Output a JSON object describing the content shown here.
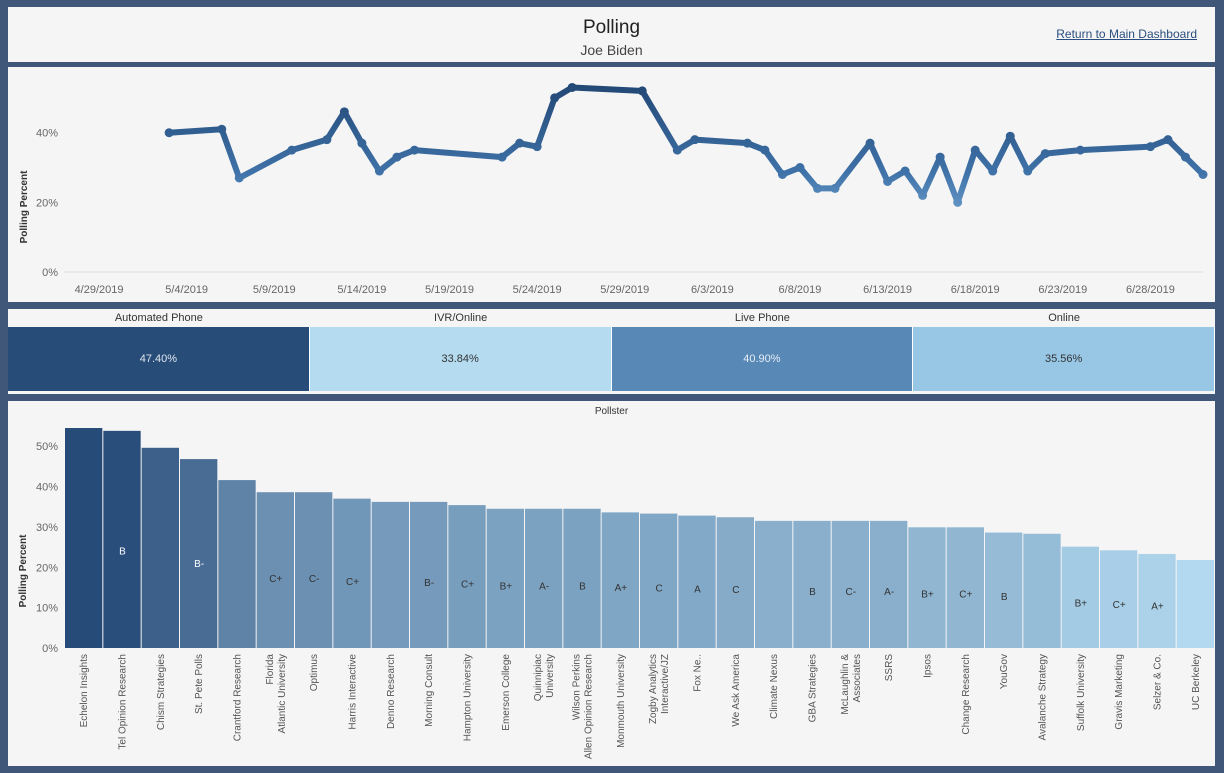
{
  "header": {
    "title": "Polling",
    "subtitle": "Joe Biden",
    "return_link": "Return to Main Dashboard"
  },
  "line_chart": {
    "ylabel": "Polling Percent",
    "y_ticks": [
      "0%",
      "20%",
      "40%"
    ],
    "x_ticks": [
      "4/29/2019",
      "5/4/2019",
      "5/9/2019",
      "5/14/2019",
      "5/19/2019",
      "5/24/2019",
      "5/29/2019",
      "6/3/2019",
      "6/8/2019",
      "6/13/2019",
      "6/18/2019",
      "6/23/2019",
      "6/28/2019"
    ]
  },
  "method_table": {
    "columns": [
      {
        "label": "Automated Phone",
        "value": "47.40%",
        "color": "#274c78",
        "text_color": "#e0e8f0"
      },
      {
        "label": "IVR/Online",
        "value": "33.84%",
        "color": "#b4dbf0",
        "text_color": "#333333"
      },
      {
        "label": "Live Phone",
        "value": "40.90%",
        "color": "#5788b6",
        "text_color": "#e8eef5"
      },
      {
        "label": "Online",
        "value": "35.56%",
        "color": "#98c7e6",
        "text_color": "#333333"
      }
    ]
  },
  "bar_chart": {
    "title": "Pollster",
    "ylabel": "Polling Percent",
    "y_ticks": [
      "0%",
      "10%",
      "20%",
      "30%",
      "40%",
      "50%"
    ]
  },
  "chart_data": [
    {
      "type": "line",
      "ylabel": "Polling Percent",
      "xlabel": "",
      "ylim": [
        0,
        56
      ],
      "xlim": [
        "2019-04-27",
        "2019-07-01"
      ],
      "points": [
        {
          "x": "2019-05-03",
          "y": 40
        },
        {
          "x": "2019-05-06",
          "y": 41
        },
        {
          "x": "2019-05-07",
          "y": 27
        },
        {
          "x": "2019-05-10",
          "y": 35
        },
        {
          "x": "2019-05-12",
          "y": 38
        },
        {
          "x": "2019-05-13",
          "y": 46
        },
        {
          "x": "2019-05-14",
          "y": 37
        },
        {
          "x": "2019-05-15",
          "y": 29
        },
        {
          "x": "2019-05-16",
          "y": 33
        },
        {
          "x": "2019-05-17",
          "y": 35
        },
        {
          "x": "2019-05-22",
          "y": 33
        },
        {
          "x": "2019-05-23",
          "y": 37
        },
        {
          "x": "2019-05-24",
          "y": 36
        },
        {
          "x": "2019-05-25",
          "y": 50
        },
        {
          "x": "2019-05-26",
          "y": 53
        },
        {
          "x": "2019-05-30",
          "y": 52
        },
        {
          "x": "2019-06-01",
          "y": 35
        },
        {
          "x": "2019-06-02",
          "y": 38
        },
        {
          "x": "2019-06-05",
          "y": 37
        },
        {
          "x": "2019-06-06",
          "y": 35
        },
        {
          "x": "2019-06-07",
          "y": 28
        },
        {
          "x": "2019-06-08",
          "y": 30
        },
        {
          "x": "2019-06-09",
          "y": 24
        },
        {
          "x": "2019-06-10",
          "y": 24
        },
        {
          "x": "2019-06-12",
          "y": 37
        },
        {
          "x": "2019-06-13",
          "y": 26
        },
        {
          "x": "2019-06-14",
          "y": 29
        },
        {
          "x": "2019-06-15",
          "y": 22
        },
        {
          "x": "2019-06-16",
          "y": 33
        },
        {
          "x": "2019-06-17",
          "y": 20
        },
        {
          "x": "2019-06-18",
          "y": 35
        },
        {
          "x": "2019-06-19",
          "y": 29
        },
        {
          "x": "2019-06-20",
          "y": 39
        },
        {
          "x": "2019-06-21",
          "y": 29
        },
        {
          "x": "2019-06-22",
          "y": 34
        },
        {
          "x": "2019-06-24",
          "y": 35
        },
        {
          "x": "2019-06-28",
          "y": 36
        },
        {
          "x": "2019-06-29",
          "y": 38
        },
        {
          "x": "2019-06-30",
          "y": 33
        },
        {
          "x": "2019-07-01",
          "y": 28
        }
      ]
    },
    {
      "type": "bar",
      "title": "Pollster",
      "ylabel": "Polling Percent",
      "xlabel": "",
      "ylim": [
        0,
        55
      ],
      "categories": [
        "Echelon Insights",
        "Tel Opinion Research",
        "Chism Strategies",
        "St. Pete Polls",
        "Crantford Research",
        "Florida Atlantic University",
        "Optimus",
        "Harris Interactive",
        "Denno Research",
        "Morning Consult",
        "Hampton University",
        "Emerson College",
        "Quinnipiac University",
        "Wilson Perkins Allen Opinion Research",
        "Monmouth University",
        "Zogby Interactive/JZ Analytics",
        "Fox Ne..",
        "We Ask America",
        "Climate Nexus",
        "GBA Strategies",
        "McLaughlin & Associates",
        "SSRS",
        "Ipsos",
        "Change Research",
        "YouGov",
        "Avalanche Strategy",
        "Suffolk University",
        "Gravis Marketing",
        "Selzer & Co.",
        "UC Berkeley"
      ],
      "values": [
        54.5,
        53.8,
        49.6,
        46.8,
        41.6,
        38.6,
        38.6,
        37.0,
        36.2,
        36.2,
        35.4,
        34.5,
        34.5,
        34.5,
        33.6,
        33.3,
        32.8,
        32.4,
        31.5,
        31.5,
        31.5,
        31.5,
        29.9,
        29.9,
        28.6,
        28.3,
        25.1,
        24.2,
        23.3,
        21.8
      ],
      "grades": [
        "",
        "B",
        "",
        "B-",
        "",
        "C+",
        "C-",
        "C+",
        "",
        "B-",
        "C+",
        "B+",
        "A-",
        "B",
        "A+",
        "C",
        "A",
        "C",
        "",
        "B",
        "C-",
        "A-",
        "B+",
        "C+",
        "B",
        "",
        "B+",
        "C+",
        "A+",
        ""
      ]
    }
  ]
}
